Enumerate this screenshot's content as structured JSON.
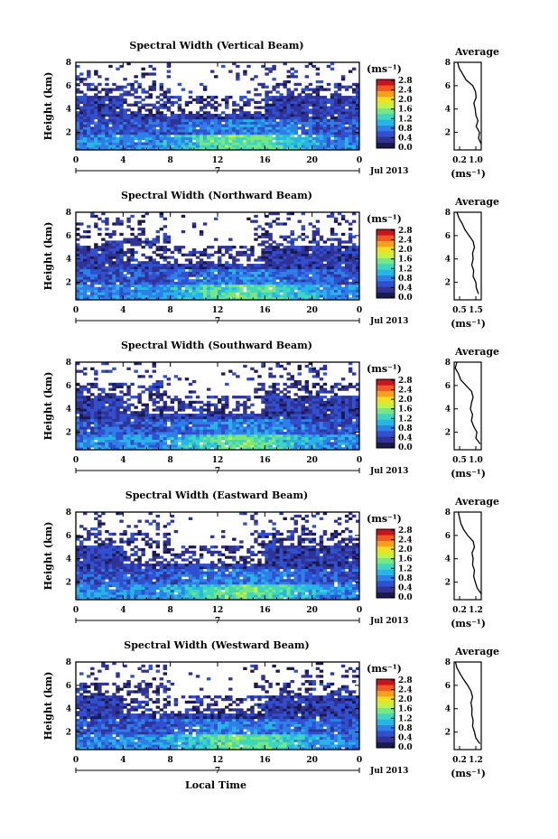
{
  "figure": {
    "x_ticks": [
      "0",
      "4",
      "8",
      "12",
      "16",
      "20",
      "0"
    ],
    "y_ticks": [
      "2",
      "4",
      "6",
      "8"
    ],
    "colorbar_ticks": [
      "0.0",
      "0.4",
      "0.8",
      "1.2",
      "1.6",
      "2.0",
      "2.4",
      "2.8"
    ],
    "colorbar_unit": "(ms⁻¹)",
    "date_label": "Jul 2013",
    "day_label": "7",
    "x_label": "Local Time",
    "y_label": "Height (km)",
    "average_title": "Average",
    "average_unit": "(ms⁻¹)",
    "colormap": [
      "#1a1a50",
      "#303296",
      "#3050d0",
      "#2f7fe8",
      "#28b4e6",
      "#3fd6c0",
      "#7ae680",
      "#c8f040",
      "#f0e020",
      "#f7a020",
      "#f05a1e",
      "#c8141e"
    ]
  },
  "chart_data": [
    {
      "type": "heatmap",
      "title": "Spectral Width (Vertical Beam)",
      "xlabel": "Local Time",
      "ylabel": "Height (km)",
      "xlim": [
        0,
        24
      ],
      "ylim": [
        0.5,
        8
      ],
      "clim": [
        0,
        2.8
      ],
      "unit": "ms⁻¹",
      "approx_profile_day": [
        0.45,
        0.45,
        0.45,
        0.45,
        0.45,
        0.5,
        0.5,
        0.5,
        0.6,
        0.7,
        0.8,
        0.95,
        1.05,
        1.1,
        1.15,
        1.1,
        1.05,
        0.95,
        0.85,
        0.75,
        0.65,
        0.55,
        0.5,
        0.45,
        0.45
      ],
      "average_profile": {
        "xtick_labels": [
          "0.2",
          "1.0"
        ],
        "xlim": [
          0.2,
          1.0
        ],
        "height": [
          1,
          1.5,
          2,
          2.5,
          3,
          3.5,
          4,
          4.5,
          5,
          5.5,
          6,
          6.5,
          7,
          7.5,
          8
        ],
        "width": [
          1.0,
          0.92,
          0.95,
          0.85,
          0.9,
          0.84,
          0.82,
          0.78,
          0.85,
          0.83,
          0.75,
          0.55,
          0.45,
          0.35,
          0.3
        ]
      }
    },
    {
      "type": "heatmap",
      "title": "Spectral Width (Northward Beam)",
      "xlabel": "Local Time",
      "ylabel": "Height (km)",
      "xlim": [
        0,
        24
      ],
      "ylim": [
        0.5,
        8
      ],
      "clim": [
        0,
        2.8
      ],
      "unit": "ms⁻¹",
      "approx_profile_day": [
        0.45,
        0.45,
        0.45,
        0.45,
        0.45,
        0.5,
        0.5,
        0.5,
        0.6,
        0.7,
        0.8,
        0.95,
        1.05,
        1.1,
        1.15,
        1.1,
        1.05,
        0.95,
        0.85,
        0.75,
        0.65,
        0.55,
        0.5,
        0.45,
        0.45
      ],
      "average_profile": {
        "xtick_labels": [
          "0.5",
          "1.5"
        ],
        "xlim": [
          0.5,
          1.5
        ],
        "height": [
          1,
          1.5,
          2,
          2.5,
          3,
          3.5,
          4,
          4.5,
          5,
          5.5,
          6,
          6.5,
          7,
          7.5,
          8
        ],
        "width": [
          1.4,
          1.32,
          1.3,
          1.2,
          1.22,
          1.15,
          1.2,
          1.18,
          1.25,
          1.2,
          1.05,
          0.9,
          0.8,
          0.68,
          0.6
        ]
      }
    },
    {
      "type": "heatmap",
      "title": "Spectral Width (Southward Beam)",
      "xlabel": "Local Time",
      "ylabel": "Height (km)",
      "xlim": [
        0,
        24
      ],
      "ylim": [
        0.5,
        8
      ],
      "clim": [
        0,
        2.8
      ],
      "unit": "ms⁻¹",
      "approx_profile_day": [
        0.45,
        0.45,
        0.45,
        0.45,
        0.45,
        0.5,
        0.5,
        0.5,
        0.6,
        0.7,
        0.8,
        0.95,
        1.05,
        1.1,
        1.15,
        1.1,
        1.05,
        0.95,
        0.85,
        0.75,
        0.65,
        0.55,
        0.5,
        0.45,
        0.45
      ],
      "average_profile": {
        "xtick_labels": [
          "0.5",
          "1.0"
        ],
        "xlim": [
          0.5,
          1.0
        ],
        "height": [
          1,
          1.5,
          2,
          2.5,
          3,
          3.5,
          4,
          4.5,
          5,
          5.5,
          6,
          6.5,
          7,
          7.5,
          8
        ],
        "width": [
          0.98,
          0.9,
          0.92,
          0.86,
          0.82,
          0.84,
          0.8,
          0.82,
          0.85,
          0.82,
          0.72,
          0.62,
          0.58,
          0.52,
          0.55
        ]
      }
    },
    {
      "type": "heatmap",
      "title": "Spectral Width (Eastward Beam)",
      "xlabel": "Local Time",
      "ylabel": "Height (km)",
      "xlim": [
        0,
        24
      ],
      "ylim": [
        0.5,
        8
      ],
      "clim": [
        0,
        2.8
      ],
      "unit": "ms⁻¹",
      "approx_profile_day": [
        0.45,
        0.45,
        0.45,
        0.45,
        0.45,
        0.5,
        0.5,
        0.5,
        0.6,
        0.7,
        0.8,
        0.95,
        1.05,
        1.1,
        1.15,
        1.1,
        1.05,
        0.95,
        0.85,
        0.75,
        0.65,
        0.55,
        0.5,
        0.45,
        0.45
      ],
      "average_profile": {
        "xtick_labels": [
          "0.2",
          "1.2"
        ],
        "xlim": [
          0.2,
          1.2
        ],
        "height": [
          1,
          1.5,
          2,
          2.5,
          3,
          3.5,
          4,
          4.5,
          5,
          5.5,
          6,
          6.5,
          7,
          7.5,
          8
        ],
        "width": [
          1.2,
          1.05,
          0.98,
          0.92,
          0.95,
          0.88,
          0.9,
          0.86,
          0.95,
          0.9,
          0.7,
          0.55,
          0.45,
          0.4,
          0.35
        ]
      }
    },
    {
      "type": "heatmap",
      "title": "Spectral Width (Westward Beam)",
      "xlabel": "Local Time",
      "ylabel": "Height (km)",
      "xlim": [
        0,
        24
      ],
      "ylim": [
        0.5,
        8
      ],
      "clim": [
        0,
        2.8
      ],
      "unit": "ms⁻¹",
      "approx_profile_day": [
        0.45,
        0.45,
        0.45,
        0.45,
        0.45,
        0.5,
        0.5,
        0.5,
        0.6,
        0.7,
        0.8,
        0.95,
        1.05,
        1.1,
        1.15,
        1.1,
        1.05,
        0.95,
        0.85,
        0.75,
        0.65,
        0.55,
        0.5,
        0.45,
        0.45
      ],
      "average_profile": {
        "xtick_labels": [
          "0.2",
          "1.2"
        ],
        "xlim": [
          0.2,
          1.2
        ],
        "height": [
          1,
          1.5,
          2,
          2.5,
          3,
          3.5,
          4,
          4.5,
          5,
          5.5,
          6,
          6.5,
          7,
          7.5,
          8
        ],
        "width": [
          1.15,
          1.0,
          0.95,
          0.88,
          0.9,
          0.85,
          0.86,
          0.82,
          0.88,
          0.82,
          0.7,
          0.55,
          0.42,
          0.3,
          0.25
        ]
      }
    }
  ]
}
